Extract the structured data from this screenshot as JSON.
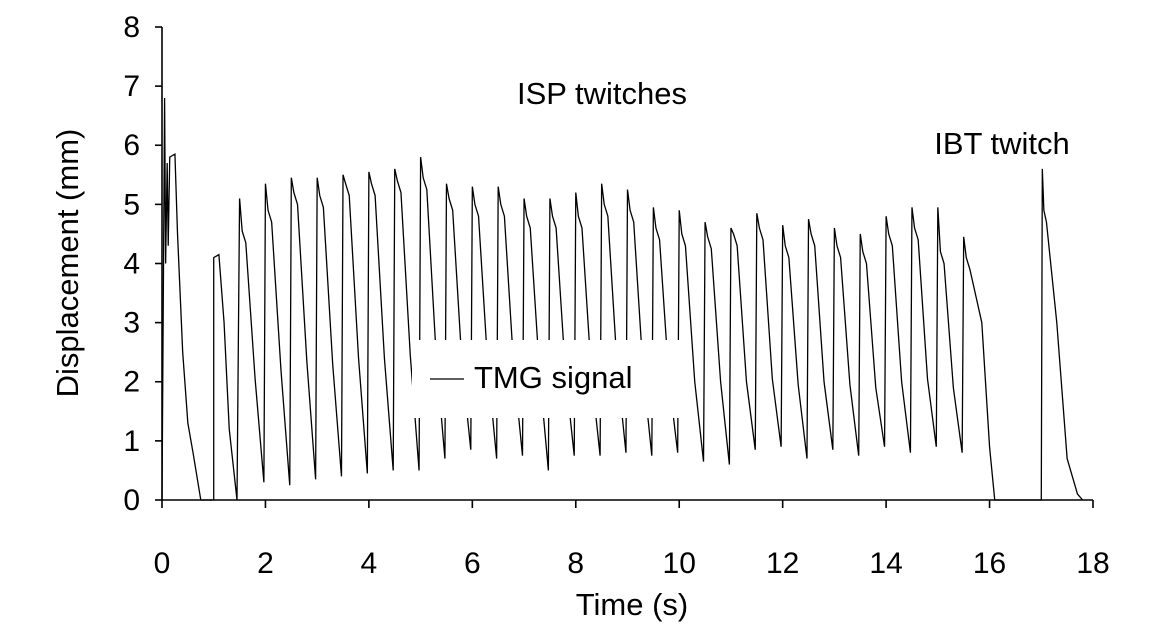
{
  "chart_data": {
    "type": "line",
    "xlabel": "Time (s)",
    "ylabel": "Displacement (mm)",
    "annotations": [
      "ISP twitches",
      "IBT twitch"
    ],
    "legend": "center",
    "xlim": [
      0,
      18
    ],
    "ylim": [
      0,
      8
    ],
    "xticks": [
      0,
      2,
      4,
      6,
      8,
      10,
      12,
      14,
      16,
      18
    ],
    "yticks": [
      0,
      1,
      2,
      3,
      4,
      5,
      6,
      7,
      8
    ],
    "grid": false,
    "series": [
      {
        "name": "TMG signal",
        "color": "#000000",
        "x": [
          0,
          0.05,
          0.07,
          0.1,
          0.12,
          0.15,
          0.25,
          0.3,
          0.4,
          0.5,
          0.6,
          0.75,
          1.0,
          1.0,
          1.1,
          1.2,
          1.3,
          1.45,
          1.5,
          1.55,
          1.62,
          1.8,
          1.97,
          2.0,
          2.05,
          2.12,
          2.3,
          2.47,
          2.5,
          2.55,
          2.62,
          2.8,
          2.97,
          3.0,
          3.05,
          3.12,
          3.3,
          3.47,
          3.5,
          3.55,
          3.62,
          3.8,
          3.97,
          4.0,
          4.05,
          4.12,
          4.3,
          4.47,
          4.5,
          4.55,
          4.62,
          4.8,
          4.97,
          5.0,
          5.05,
          5.12,
          5.3,
          5.47,
          5.5,
          5.55,
          5.62,
          5.8,
          5.97,
          6.0,
          6.05,
          6.12,
          6.3,
          6.47,
          6.5,
          6.55,
          6.62,
          6.8,
          6.97,
          7.0,
          7.05,
          7.12,
          7.3,
          7.47,
          7.5,
          7.55,
          7.62,
          7.8,
          7.97,
          8.0,
          8.05,
          8.12,
          8.3,
          8.47,
          8.5,
          8.55,
          8.62,
          8.8,
          8.97,
          9.0,
          9.05,
          9.12,
          9.3,
          9.47,
          9.5,
          9.55,
          9.62,
          9.8,
          9.97,
          10.0,
          10.05,
          10.12,
          10.3,
          10.47,
          10.5,
          10.55,
          10.62,
          10.8,
          10.97,
          11.0,
          11.05,
          11.12,
          11.3,
          11.47,
          11.5,
          11.55,
          11.62,
          11.8,
          11.97,
          12.0,
          12.05,
          12.12,
          12.3,
          12.47,
          12.5,
          12.55,
          12.62,
          12.8,
          12.97,
          13.0,
          13.05,
          13.12,
          13.3,
          13.47,
          13.5,
          13.55,
          13.62,
          13.8,
          13.97,
          14.0,
          14.05,
          14.12,
          14.3,
          14.47,
          14.5,
          14.55,
          14.62,
          14.8,
          14.97,
          15.0,
          15.05,
          15.12,
          15.3,
          15.47,
          15.5,
          15.55,
          15.62,
          15.85,
          16.0,
          16.1,
          17.0,
          17.02,
          17.05,
          17.1,
          17.3,
          17.5,
          17.7,
          17.8
        ],
        "values": [
          0,
          6.8,
          4.0,
          5.7,
          4.3,
          5.8,
          5.85,
          4.5,
          2.5,
          1.3,
          0.8,
          0,
          0,
          4.1,
          4.15,
          3.0,
          1.2,
          0,
          5.1,
          4.55,
          4.35,
          2.05,
          0.3,
          5.35,
          4.9,
          4.7,
          2.2,
          0.25,
          5.45,
          5.2,
          5.0,
          2.35,
          0.35,
          5.45,
          5.15,
          4.95,
          2.3,
          0.4,
          5.5,
          5.35,
          5.15,
          2.4,
          0.45,
          5.55,
          5.35,
          5.15,
          2.4,
          0.5,
          5.6,
          5.4,
          5.2,
          2.45,
          0.5,
          5.8,
          5.45,
          5.25,
          2.45,
          0.7,
          5.35,
          5.1,
          4.9,
          2.3,
          0.85,
          5.3,
          5.0,
          4.8,
          2.25,
          0.7,
          5.3,
          5.0,
          4.8,
          2.25,
          0.75,
          5.1,
          4.8,
          4.6,
          2.15,
          0.5,
          5.1,
          4.8,
          4.6,
          2.15,
          0.75,
          5.2,
          4.8,
          4.6,
          2.15,
          0.75,
          5.35,
          5.0,
          4.8,
          2.25,
          0.8,
          5.25,
          4.9,
          4.7,
          2.2,
          0.75,
          4.95,
          4.6,
          4.4,
          2.05,
          0.8,
          4.9,
          4.5,
          4.3,
          2.0,
          0.65,
          4.7,
          4.45,
          4.25,
          2.0,
          0.6,
          4.6,
          4.5,
          4.3,
          2.0,
          0.85,
          4.85,
          4.6,
          4.4,
          2.05,
          0.9,
          4.65,
          4.3,
          4.1,
          1.95,
          0.7,
          4.75,
          4.5,
          4.3,
          2.0,
          0.85,
          4.6,
          4.3,
          4.1,
          1.95,
          0.75,
          4.5,
          4.2,
          4.0,
          1.9,
          0.9,
          4.8,
          4.5,
          4.3,
          2.0,
          0.8,
          4.95,
          4.6,
          4.4,
          2.05,
          0.9,
          4.95,
          4.2,
          4.0,
          1.9,
          0.8,
          4.45,
          4.1,
          3.9,
          3.0,
          0.9,
          0,
          0,
          5.6,
          4.9,
          4.7,
          3.0,
          0.7,
          0.1,
          0
        ]
      }
    ]
  }
}
